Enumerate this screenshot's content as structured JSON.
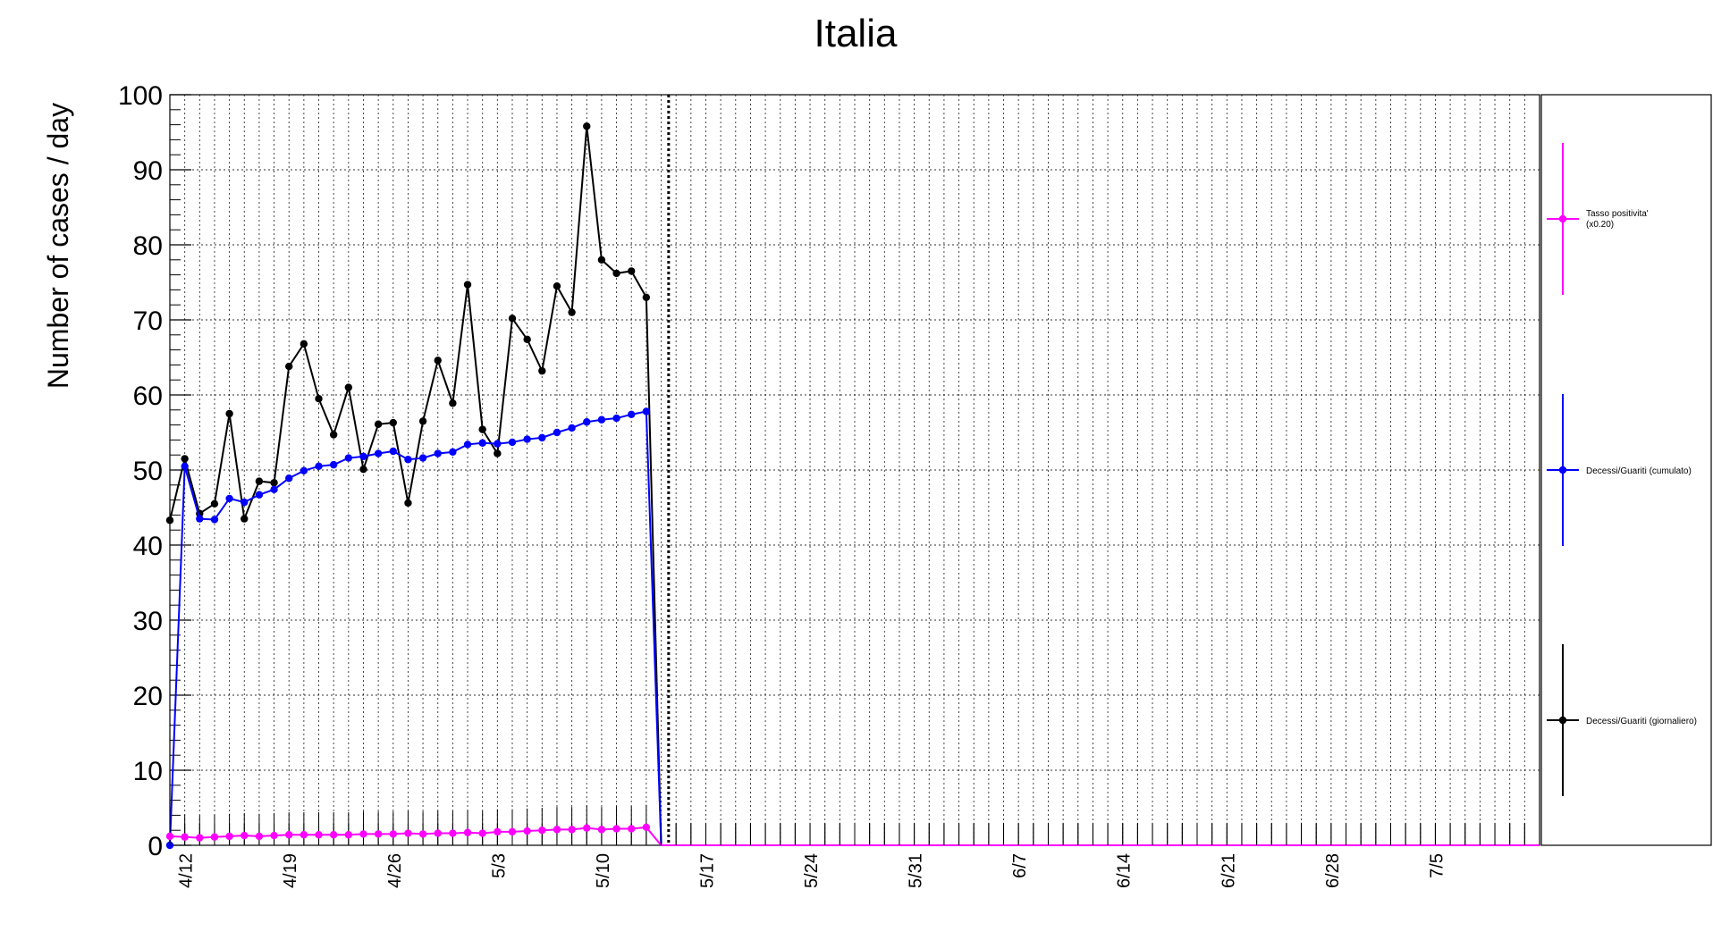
{
  "chart_data": {
    "type": "line",
    "title": "Italia",
    "ylabel": "Number of cases / day",
    "xlabel": "",
    "ylim": [
      0,
      100
    ],
    "y_ticks": [
      0,
      10,
      20,
      30,
      40,
      50,
      60,
      70,
      80,
      90,
      100
    ],
    "x_range_days": [
      -1,
      91
    ],
    "x_tick_labels": [
      {
        "day": 0,
        "label": "4/12"
      },
      {
        "day": 7,
        "label": "4/19"
      },
      {
        "day": 14,
        "label": "4/26"
      },
      {
        "day": 21,
        "label": "5/3"
      },
      {
        "day": 28,
        "label": "5/10"
      },
      {
        "day": 35,
        "label": "5/17"
      },
      {
        "day": 42,
        "label": "5/24"
      },
      {
        "day": 49,
        "label": "5/31"
      },
      {
        "day": 56,
        "label": "6/7"
      },
      {
        "day": 63,
        "label": "6/14"
      },
      {
        "day": 70,
        "label": "6/21"
      },
      {
        "day": 77,
        "label": "6/28"
      },
      {
        "day": 84,
        "label": "7/5"
      }
    ],
    "grid": true,
    "legend_position": "right",
    "vertical_marker_day": 32.5,
    "series": [
      {
        "name": "Decessi/Guariti (giornaliero)",
        "color": "#000000",
        "start_day": -1,
        "values": [
          43.3,
          51.5,
          44.2,
          45.5,
          57.5,
          43.5,
          48.5,
          48.3,
          63.8,
          66.8,
          59.5,
          54.7,
          61.0,
          50.1,
          56.1,
          56.3,
          45.6,
          56.5,
          64.6,
          58.9,
          74.7,
          55.4,
          52.2,
          70.2,
          67.4,
          63.2,
          74.5,
          71.0,
          95.8,
          78.0,
          76.2,
          76.5,
          73.0
        ],
        "tail_values": [
          0,
          0,
          0,
          0,
          0,
          0,
          0,
          0,
          0,
          0,
          0,
          0,
          0,
          0,
          0,
          0,
          0,
          0,
          0,
          0,
          0,
          0,
          0,
          0,
          0,
          0,
          0,
          0,
          0,
          0,
          0,
          0,
          0,
          0,
          0,
          0,
          0,
          0,
          0,
          0,
          0,
          0,
          0,
          0,
          0,
          0,
          0,
          0,
          0,
          0,
          0,
          0,
          0,
          0,
          0,
          0,
          0,
          0,
          0,
          0
        ]
      },
      {
        "name": "Decessi/Guariti (cumulato)",
        "color": "#0000ff",
        "start_day": -1,
        "values": [
          0,
          50.5,
          43.5,
          43.4,
          46.2,
          45.7,
          46.7,
          47.4,
          48.9,
          49.9,
          50.5,
          50.7,
          51.6,
          51.8,
          52.2,
          52.5,
          51.4,
          51.6,
          52.2,
          52.4,
          53.4,
          53.6,
          53.5,
          53.7,
          54.1,
          54.3,
          55.0,
          55.6,
          56.4,
          56.7,
          56.9,
          57.4,
          57.8
        ],
        "tail_values": [
          0,
          0,
          0,
          0,
          0,
          0,
          0,
          0,
          0,
          0,
          0,
          0,
          0,
          0,
          0,
          0,
          0,
          0,
          0,
          0,
          0,
          0,
          0,
          0,
          0,
          0,
          0,
          0,
          0,
          0,
          0,
          0,
          0,
          0,
          0,
          0,
          0,
          0,
          0,
          0,
          0,
          0,
          0,
          0,
          0,
          0,
          0,
          0,
          0,
          0,
          0,
          0,
          0,
          0,
          0,
          0,
          0,
          0,
          0,
          0
        ]
      },
      {
        "name": "Tasso positivita' (x0.20)",
        "legend_lines": [
          "Tasso positivita'",
          "(x0.20)"
        ],
        "color": "#ff00ff",
        "start_day": -1,
        "values": [
          1.2,
          1.1,
          1.0,
          1.1,
          1.2,
          1.3,
          1.2,
          1.3,
          1.4,
          1.4,
          1.4,
          1.4,
          1.4,
          1.5,
          1.5,
          1.5,
          1.6,
          1.5,
          1.6,
          1.6,
          1.7,
          1.6,
          1.8,
          1.8,
          1.9,
          2.0,
          2.1,
          2.1,
          2.3,
          2.1,
          2.2,
          2.2,
          2.4
        ],
        "tail_values": [
          0,
          0,
          0,
          0,
          0,
          0,
          0,
          0,
          0,
          0,
          0,
          0,
          0,
          0,
          0,
          0,
          0,
          0,
          0,
          0,
          0,
          0,
          0,
          0,
          0,
          0,
          0,
          0,
          0,
          0,
          0,
          0,
          0,
          0,
          0,
          0,
          0,
          0,
          0,
          0,
          0,
          0,
          0,
          0,
          0,
          0,
          0,
          0,
          0,
          0,
          0,
          0,
          0,
          0,
          0,
          0,
          0,
          0,
          0,
          0
        ],
        "error_bar": 3
      }
    ]
  }
}
